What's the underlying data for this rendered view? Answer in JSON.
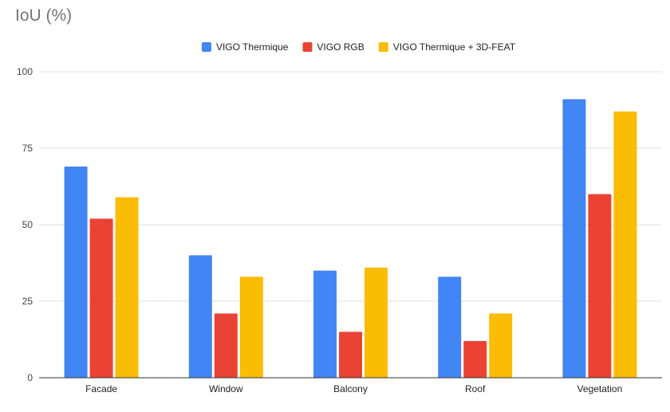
{
  "chart_data": {
    "type": "bar",
    "title": "IoU (%)",
    "xlabel": "",
    "ylabel": "",
    "ylim": [
      0,
      100
    ],
    "yticks": [
      "0",
      "25",
      "50",
      "75",
      "100"
    ],
    "grid": true,
    "legend_position": "top",
    "categories": [
      "Facade",
      "Window",
      "Balcony",
      "Roof",
      "Vegetation"
    ],
    "series": [
      {
        "name": "VIGO Thermique",
        "color": "#4285F4",
        "values": [
          69,
          40,
          35,
          33,
          91
        ]
      },
      {
        "name": "VIGO RGB",
        "color": "#EA4335",
        "values": [
          52,
          21,
          15,
          12,
          60
        ]
      },
      {
        "name": "VIGO Thermique + 3D-FEAT",
        "color": "#FBBC04",
        "values": [
          59,
          33,
          36,
          21,
          87
        ]
      }
    ]
  }
}
